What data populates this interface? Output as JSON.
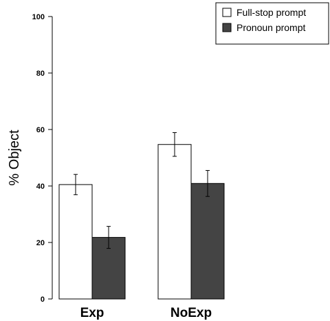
{
  "chart_data": {
    "type": "bar",
    "categories": [
      "Exp",
      "NoExp"
    ],
    "series": [
      {
        "name": "Full-stop prompt",
        "values": [
          40.5,
          54.7
        ],
        "error": [
          3.6,
          4.2
        ],
        "color": "#ffffff"
      },
      {
        "name": "Pronoun prompt",
        "values": [
          21.8,
          40.9
        ],
        "error": [
          3.9,
          4.6
        ],
        "color": "#444444"
      }
    ],
    "ylabel": "% Object",
    "ylim": [
      0,
      100
    ],
    "yticks": [
      "0",
      "20",
      "40",
      "60",
      "80",
      "100"
    ],
    "legend_position": "top-right",
    "grid": false
  }
}
